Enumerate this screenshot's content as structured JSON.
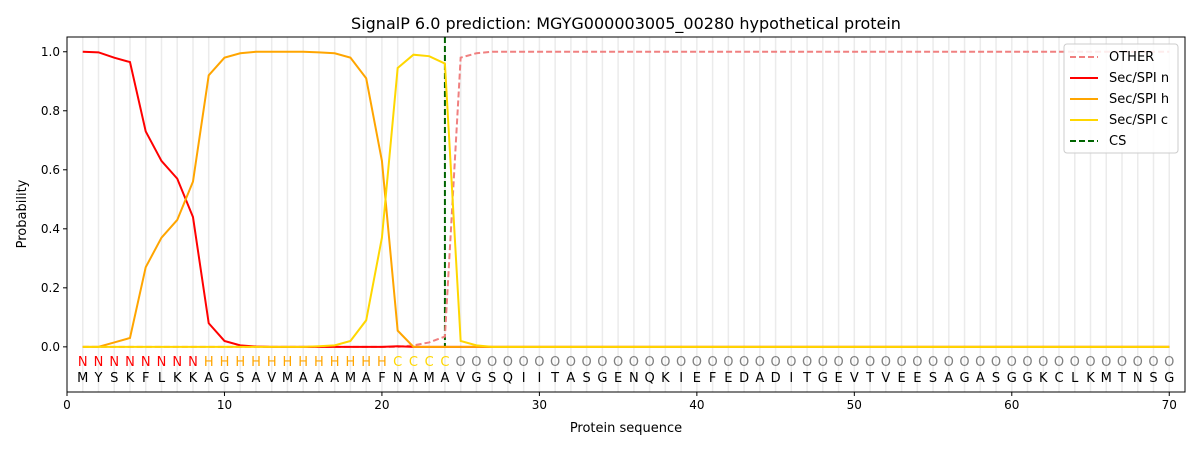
{
  "chart_data": {
    "type": "line",
    "title": "SignalP 6.0 prediction: MGYG000003005_00280 hypothetical protein",
    "xlabel": "Protein sequence",
    "ylabel": "Probability",
    "xlim": [
      0,
      71
    ],
    "ylim": [
      -0.153,
      1.05
    ],
    "xticks": [
      0,
      10,
      20,
      30,
      40,
      50,
      60,
      70
    ],
    "yticks": [
      0.0,
      0.2,
      0.4,
      0.6,
      0.8,
      1.0
    ],
    "ytick_labels": [
      "0.0",
      "0.2",
      "0.4",
      "0.6",
      "0.8",
      "1.0"
    ],
    "grid": "vertical lines at each residue",
    "legend_placement": "top-right",
    "sequence": "MYSKFLKKAGSAVMAAAMAFNAMAVGSQIITASGENQKIEFEDADITGEVTVEESAGASGGKCLKMTNSG",
    "labels": "NNNNNNNNHHHHHHHHHHHHCCCCOOOOOOOOOOOOOOOOOOOOOOOOOOOOOOOOOOOOOOOOOOOOOO",
    "label_colors": {
      "N": "#ff0000",
      "H": "#ffa500",
      "C": "#ffd700",
      "O": "#808080"
    },
    "cs_position": 24,
    "series": [
      {
        "name": "OTHER",
        "color": "#f08080",
        "dash": true,
        "values": [
          0,
          0,
          0,
          0,
          0,
          0,
          0,
          0,
          0,
          0,
          0,
          0,
          0,
          0,
          0,
          0,
          0,
          0,
          0,
          0,
          0.0,
          0.005,
          0.015,
          0.035,
          0.98,
          0.995,
          1,
          1,
          1,
          1,
          1,
          1,
          1,
          1,
          1,
          1,
          1,
          1,
          1,
          1,
          1,
          1,
          1,
          1,
          1,
          1,
          1,
          1,
          1,
          1,
          1,
          1,
          1,
          1,
          1,
          1,
          1,
          1,
          1,
          1,
          1,
          1,
          1,
          1,
          1,
          1,
          1,
          1,
          1,
          1
        ]
      },
      {
        "name": "Sec/SPI n",
        "color": "#ff0000",
        "dash": false,
        "values": [
          1.0,
          0.998,
          0.98,
          0.965,
          0.73,
          0.63,
          0.57,
          0.44,
          0.08,
          0.02,
          0.005,
          0.001,
          0,
          0,
          0,
          0,
          0,
          0,
          0,
          0,
          0.002,
          0,
          0,
          0,
          0,
          0,
          0,
          0,
          0,
          0,
          0,
          0,
          0,
          0,
          0,
          0,
          0,
          0,
          0,
          0,
          0,
          0,
          0,
          0,
          0,
          0,
          0,
          0,
          0,
          0,
          0,
          0,
          0,
          0,
          0,
          0,
          0,
          0,
          0,
          0,
          0,
          0,
          0,
          0,
          0,
          0,
          0,
          0,
          0,
          0
        ]
      },
      {
        "name": "Sec/SPI h",
        "color": "#ffa500",
        "dash": false,
        "values": [
          0,
          0,
          0.015,
          0.03,
          0.27,
          0.37,
          0.43,
          0.56,
          0.92,
          0.98,
          0.995,
          1,
          1,
          1,
          1,
          0.998,
          0.995,
          0.98,
          0.91,
          0.63,
          0.055,
          0.0,
          0,
          0,
          0,
          0,
          0,
          0,
          0,
          0,
          0,
          0,
          0,
          0,
          0,
          0,
          0,
          0,
          0,
          0,
          0,
          0,
          0,
          0,
          0,
          0,
          0,
          0,
          0,
          0,
          0,
          0,
          0,
          0,
          0,
          0,
          0,
          0,
          0,
          0,
          0,
          0,
          0,
          0,
          0,
          0,
          0,
          0,
          0,
          0
        ]
      },
      {
        "name": "Sec/SPI c",
        "color": "#ffd700",
        "dash": false,
        "values": [
          0,
          0,
          0,
          0,
          0,
          0,
          0,
          0,
          0,
          0,
          0,
          0,
          0,
          0,
          0,
          0.002,
          0.005,
          0.02,
          0.09,
          0.37,
          0.945,
          0.99,
          0.985,
          0.96,
          0.02,
          0.005,
          0,
          0,
          0,
          0,
          0,
          0,
          0,
          0,
          0,
          0,
          0,
          0,
          0,
          0,
          0,
          0,
          0,
          0,
          0,
          0,
          0,
          0,
          0,
          0,
          0,
          0,
          0,
          0,
          0,
          0,
          0,
          0,
          0,
          0,
          0,
          0,
          0,
          0,
          0,
          0,
          0,
          0,
          0,
          0
        ]
      },
      {
        "name": "CS",
        "color": "#006400",
        "dash": true,
        "values": []
      }
    ]
  }
}
